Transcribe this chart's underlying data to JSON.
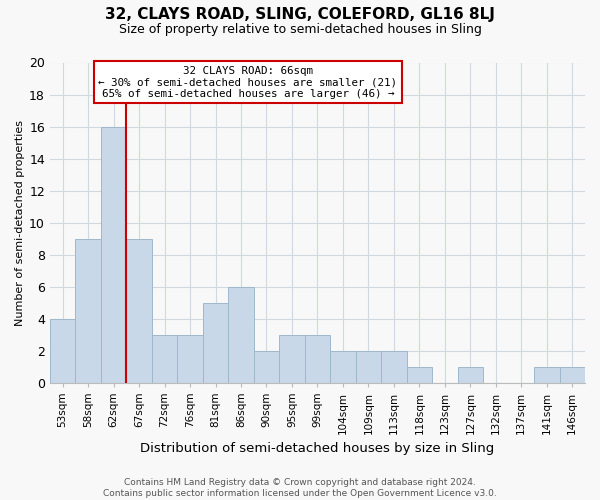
{
  "title": "32, CLAYS ROAD, SLING, COLEFORD, GL16 8LJ",
  "subtitle": "Size of property relative to semi-detached houses in Sling",
  "xlabel": "Distribution of semi-detached houses by size in Sling",
  "ylabel": "Number of semi-detached properties",
  "footer": "Contains HM Land Registry data © Crown copyright and database right 2024.\nContains public sector information licensed under the Open Government Licence v3.0.",
  "bar_labels": [
    "53sqm",
    "58sqm",
    "62sqm",
    "67sqm",
    "72sqm",
    "76sqm",
    "81sqm",
    "86sqm",
    "90sqm",
    "95sqm",
    "99sqm",
    "104sqm",
    "109sqm",
    "113sqm",
    "118sqm",
    "123sqm",
    "127sqm",
    "132sqm",
    "137sqm",
    "141sqm",
    "146sqm"
  ],
  "bar_values": [
    4,
    9,
    16,
    9,
    3,
    3,
    5,
    6,
    2,
    3,
    3,
    2,
    2,
    2,
    1,
    0,
    1,
    0,
    0,
    1,
    1
  ],
  "bar_color": "#c8d8e8",
  "bar_edgecolor": "#a0b8cc",
  "bar_width": 1.0,
  "ylim": [
    0,
    20
  ],
  "yticks": [
    0,
    2,
    4,
    6,
    8,
    10,
    12,
    14,
    16,
    18,
    20
  ],
  "red_line_x": 2.5,
  "annotation_line1": "32 CLAYS ROAD: 66sqm",
  "annotation_line2": "← 30% of semi-detached houses are smaller (21)",
  "annotation_line3": "65% of semi-detached houses are larger (46) →",
  "annotation_box_color": "#cc0000",
  "grid_color": "#d0d8e0",
  "background_color": "#f8f8f8"
}
